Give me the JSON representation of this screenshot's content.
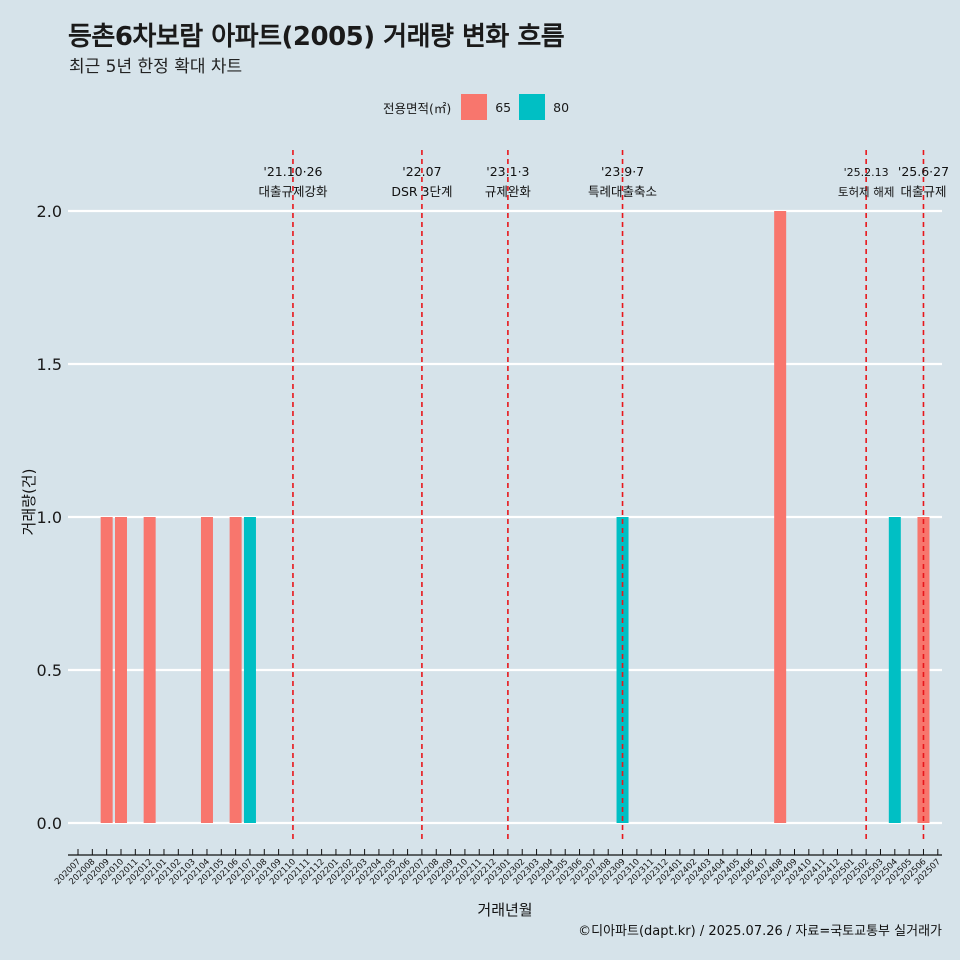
{
  "title": "등촌6차보람 아파트(2005) 거래량 변화 흐름",
  "subtitle": "최근 5년 한정 확대 차트",
  "caption": "©디아파트(dapt.kr) / 2025.07.26 / 자료=국토교통부 실거래가",
  "legend": {
    "title": "전용면적(㎡)",
    "items": [
      {
        "label": "65",
        "color": "#f8766d"
      },
      {
        "label": "80",
        "color": "#00bfc4"
      }
    ]
  },
  "chart_data": {
    "type": "bar",
    "xlabel": "거래년월",
    "ylabel": "거래량(건)",
    "ylim": [
      0,
      2.0
    ],
    "yticks": [
      "0.0",
      "0.5",
      "1.0",
      "1.5",
      "2.0"
    ],
    "categories": [
      "202007",
      "202008",
      "202009",
      "202010",
      "202011",
      "202012",
      "202101",
      "202102",
      "202103",
      "202104",
      "202105",
      "202106",
      "202107",
      "202108",
      "202109",
      "202110",
      "202111",
      "202112",
      "202201",
      "202202",
      "202203",
      "202204",
      "202205",
      "202206",
      "202207",
      "202208",
      "202209",
      "202210",
      "202211",
      "202212",
      "202301",
      "202302",
      "202303",
      "202304",
      "202305",
      "202306",
      "202307",
      "202308",
      "202309",
      "202310",
      "202311",
      "202312",
      "202401",
      "202402",
      "202403",
      "202404",
      "202405",
      "202406",
      "202407",
      "202408",
      "202409",
      "202410",
      "202411",
      "202412",
      "202501",
      "202502",
      "202503",
      "202504",
      "202505",
      "202506",
      "202507"
    ],
    "series": [
      {
        "name": "65",
        "color": "#f8766d",
        "points": [
          {
            "x": "202009",
            "y": 1
          },
          {
            "x": "202010",
            "y": 1
          },
          {
            "x": "202012",
            "y": 1
          },
          {
            "x": "202104",
            "y": 1
          },
          {
            "x": "202106",
            "y": 1
          },
          {
            "x": "202408",
            "y": 2
          },
          {
            "x": "202506",
            "y": 1
          }
        ]
      },
      {
        "name": "80",
        "color": "#00bfc4",
        "points": [
          {
            "x": "202107",
            "y": 1
          },
          {
            "x": "202309",
            "y": 1
          },
          {
            "x": "202504",
            "y": 1
          }
        ]
      }
    ],
    "annotations": [
      {
        "date_label": "'21.10·26",
        "text": "대출규제강화",
        "at": "202110"
      },
      {
        "date_label": "'22.07",
        "text": "DSR 3단계",
        "at": "202207"
      },
      {
        "date_label": "'23.1·3",
        "text": "규제완화",
        "at": "202301"
      },
      {
        "date_label": "'23.9·7",
        "text": "특례대출축소",
        "at": "202309"
      },
      {
        "date_label": "'25.2.13",
        "text": "토허제 해제",
        "at": "202502"
      },
      {
        "date_label": "'25.6·27",
        "text": "대출규제",
        "at": "202506"
      }
    ],
    "line_color": "#e8161b",
    "grid": true
  }
}
